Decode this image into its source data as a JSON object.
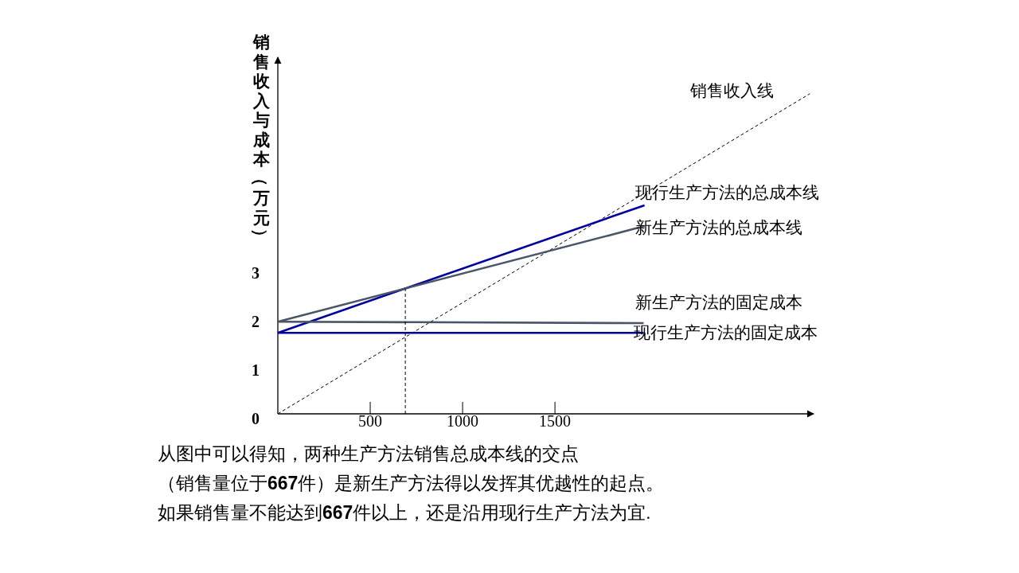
{
  "chart_data": {
    "type": "line",
    "ylabel": "销售收入与成本（万元）",
    "xlim": [
      0,
      2900
    ],
    "ylim": [
      0,
      7.35
    ],
    "xticks": [
      500,
      1000,
      1500
    ],
    "yticks": [
      0,
      1,
      2,
      3
    ],
    "grid": false,
    "legend": false,
    "series": [
      {
        "name": "销售收入线",
        "color": "#000000",
        "line_style": "dashed",
        "x": [
          0,
          2880
        ],
        "values": [
          0,
          6.6
        ]
      },
      {
        "name": "现行生产方法的总成本线",
        "color": "#00009c",
        "line_style": "solid",
        "x": [
          0,
          1985
        ],
        "values": [
          1.67,
          4.3
        ]
      },
      {
        "name": "新生产方法的总成本线",
        "color": "#4a5568",
        "line_style": "solid",
        "x": [
          0,
          1985
        ],
        "values": [
          1.9,
          3.87
        ]
      },
      {
        "name": "新生产方法的固定成本",
        "color": "#4a5568",
        "line_style": "solid",
        "x": [
          0,
          1980
        ],
        "values": [
          1.9,
          1.87
        ]
      },
      {
        "name": "现行生产方法的固定成本",
        "color": "#00009c",
        "line_style": "solid",
        "x": [
          0,
          1980
        ],
        "values": [
          1.67,
          1.67
        ]
      },
      {
        "color": "#000000",
        "line_style": "dashed",
        "x": [
          690,
          690
        ],
        "values": [
          0,
          2.58
        ]
      }
    ],
    "annotations": [
      "从图中可以得知，两种生产方法销售总成本线的交点",
      "（销售量位于667件）是新生产方法得以发挥其优越性的起点。",
      "如果销售量不能达到667件以上，还是沿用现行生产方法为宜."
    ]
  }
}
